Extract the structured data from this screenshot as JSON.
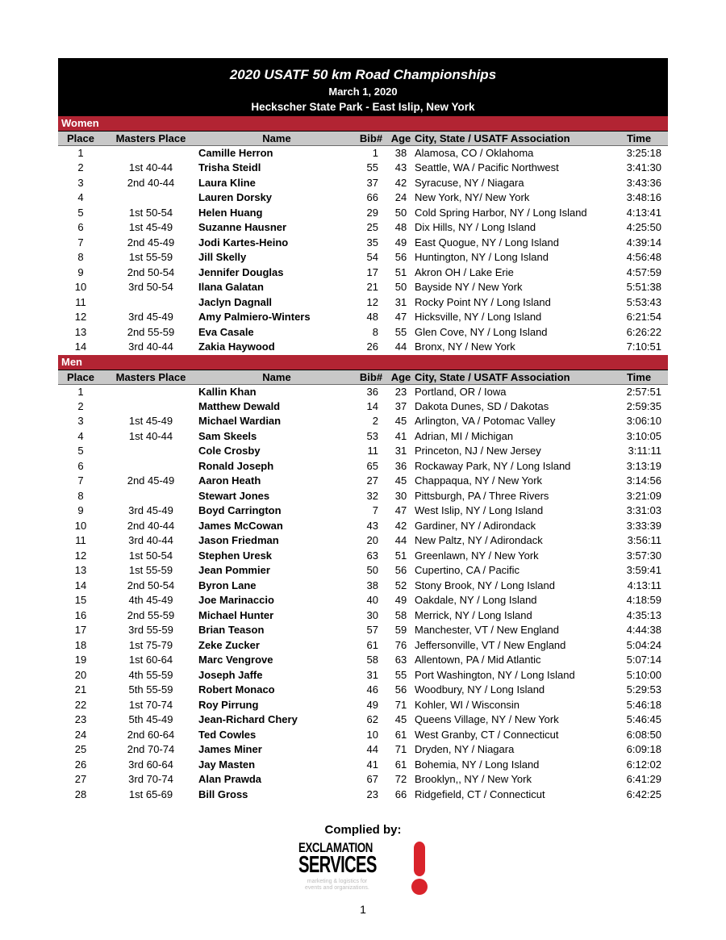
{
  "header": {
    "title": "2020 USATF 50 km Road Championships",
    "date": "March 1, 2020",
    "location": "Heckscher State Park - East Islip, New York"
  },
  "columns": [
    "Place",
    "Masters Place",
    "Name",
    "Bib#",
    "Age",
    "City, State / USATF Association",
    "Time"
  ],
  "sections": [
    {
      "label": "Women",
      "rows": [
        [
          "1",
          "",
          "Camille Herron",
          "1",
          "38",
          "Alamosa, CO / Oklahoma",
          "3:25:18"
        ],
        [
          "2",
          "1st 40-44",
          "Trisha Steidl",
          "55",
          "43",
          "Seattle, WA / Pacific Northwest",
          "3:41:30"
        ],
        [
          "3",
          "2nd 40-44",
          "Laura Kline",
          "37",
          "42",
          "Syracuse, NY / Niagara",
          "3:43:36"
        ],
        [
          "4",
          "",
          "Lauren Dorsky",
          "66",
          "24",
          "New York, NY/ New York",
          "3:48:16"
        ],
        [
          "5",
          "1st 50-54",
          "Helen Huang",
          "29",
          "50",
          "Cold Spring Harbor, NY / Long Island",
          "4:13:41"
        ],
        [
          "6",
          "1st 45-49",
          "Suzanne Hausner",
          "25",
          "48",
          "Dix Hills, NY / Long Island",
          "4:25:50"
        ],
        [
          "7",
          "2nd 45-49",
          "Jodi Kartes-Heino",
          "35",
          "49",
          "East Quogue, NY / Long Island",
          "4:39:14"
        ],
        [
          "8",
          "1st 55-59",
          "Jill Skelly",
          "54",
          "56",
          "Huntington, NY  / Long Island",
          "4:56:48"
        ],
        [
          "9",
          "2nd 50-54",
          "Jennifer Douglas",
          "17",
          "51",
          "Akron OH / Lake Erie",
          "4:57:59"
        ],
        [
          "10",
          "3rd 50-54",
          "Ilana Galatan",
          "21",
          "50",
          "Bayside NY / New York",
          "5:51:38"
        ],
        [
          "11",
          "",
          "Jaclyn Dagnall",
          "12",
          "31",
          "Rocky Point NY / Long Island",
          "5:53:43"
        ],
        [
          "12",
          "3rd 45-49",
          "Amy Palmiero-Winters",
          "48",
          "47",
          "Hicksville, NY / Long Island",
          "6:21:54"
        ],
        [
          "13",
          "2nd 55-59",
          "Eva Casale",
          "8",
          "55",
          "Glen Cove, NY / Long Island",
          "6:26:22"
        ],
        [
          "14",
          "3rd 40-44",
          "Zakia Haywood",
          "26",
          "44",
          "Bronx, NY / New York",
          "7:10:51"
        ]
      ]
    },
    {
      "label": "Men",
      "rows": [
        [
          "1",
          "",
          "Kallin Khan",
          "36",
          "23",
          "Portland, OR / Iowa",
          "2:57:51"
        ],
        [
          "2",
          "",
          "Matthew Dewald",
          "14",
          "37",
          "Dakota Dunes, SD / Dakotas",
          "2:59:35"
        ],
        [
          "3",
          "1st 45-49",
          "Michael Wardian",
          "2",
          "45",
          "Arlington, VA / Potomac Valley",
          "3:06:10"
        ],
        [
          "4",
          "1st 40-44",
          "Sam Skeels",
          "53",
          "41",
          "Adrian, MI / Michigan",
          "3:10:05"
        ],
        [
          "5",
          "",
          "Cole Crosby",
          "11",
          "31",
          "Princeton, NJ / New Jersey",
          "3:11:11"
        ],
        [
          "6",
          "",
          "Ronald Joseph",
          "65",
          "36",
          "Rockaway Park, NY / Long Island",
          "3:13:19"
        ],
        [
          "7",
          "2nd 45-49",
          "Aaron Heath",
          "27",
          "45",
          "Chappaqua, NY / New York",
          "3:14:56"
        ],
        [
          "8",
          "",
          "Stewart Jones",
          "32",
          "30",
          "Pittsburgh, PA / Three Rivers",
          "3:21:09"
        ],
        [
          "9",
          "3rd 45-49",
          "Boyd Carrington",
          "7",
          "47",
          "West Islip, NY / Long Island",
          "3:31:03"
        ],
        [
          "10",
          "2nd 40-44",
          "James McCowan",
          "43",
          "42",
          "Gardiner, NY / Adirondack",
          "3:33:39"
        ],
        [
          "11",
          "3rd 40-44",
          "Jason Friedman",
          "20",
          "44",
          "New Paltz, NY / Adirondack",
          "3:56:11"
        ],
        [
          "12",
          "1st 50-54",
          "Stephen Uresk",
          "63",
          "51",
          "Greenlawn, NY / New York",
          "3:57:30"
        ],
        [
          "13",
          "1st 55-59",
          "Jean Pommier",
          "50",
          "56",
          "Cupertino, CA / Pacific",
          "3:59:41"
        ],
        [
          "14",
          "2nd 50-54",
          "Byron Lane",
          "38",
          "52",
          "Stony Brook, NY / Long Island",
          "4:13:11"
        ],
        [
          "15",
          "4th 45-49",
          "Joe Marinaccio",
          "40",
          "49",
          "Oakdale, NY / Long Island",
          "4:18:59"
        ],
        [
          "16",
          "2nd 55-59",
          "Michael Hunter",
          "30",
          "58",
          "Merrick, NY / Long Island",
          "4:35:13"
        ],
        [
          "17",
          "3rd 55-59",
          "Brian Teason",
          "57",
          "59",
          "Manchester, VT / New England",
          "4:44:38"
        ],
        [
          "18",
          "1st 75-79",
          "Zeke Zucker",
          "61",
          "76",
          "Jeffersonville, VT / New England",
          "5:04:24"
        ],
        [
          "19",
          "1st 60-64",
          "Marc Vengrove",
          "58",
          "63",
          "Allentown, PA / Mid Atlantic",
          "5:07:14"
        ],
        [
          "20",
          "4th 55-59",
          "Joseph Jaffe",
          "31",
          "55",
          "Port Washington, NY / Long Island",
          "5:10:00"
        ],
        [
          "21",
          "5th 55-59",
          "Robert Monaco",
          "46",
          "56",
          "Woodbury, NY / Long Island",
          "5:29:53"
        ],
        [
          "22",
          "1st 70-74",
          "Roy Pirrung",
          "49",
          "71",
          "Kohler, WI / Wisconsin",
          "5:46:18"
        ],
        [
          "23",
          "5th 45-49",
          "Jean-Richard Chery",
          "62",
          "45",
          "Queens Village, NY / New York",
          "5:46:45"
        ],
        [
          "24",
          "2nd 60-64",
          "Ted Cowles",
          "10",
          "61",
          "West Granby, CT / Connecticut",
          "6:08:50"
        ],
        [
          "25",
          "2nd 70-74",
          "James Miner",
          "44",
          "71",
          "Dryden, NY / Niagara",
          "6:09:18"
        ],
        [
          "26",
          "3rd 60-64",
          "Jay Masten",
          "41",
          "61",
          "Bohemia, NY / Long Island",
          "6:12:02"
        ],
        [
          "27",
          "3rd 70-74",
          "Alan Prawda",
          "67",
          "72",
          "Brooklyn,, NY / New York",
          "6:41:29"
        ],
        [
          "28",
          "1st 65-69",
          "Bill Gross",
          "23",
          "66",
          "Ridgefield, CT / Connecticut",
          "6:42:25"
        ]
      ]
    }
  ],
  "footer": {
    "complied_by": "Complied by:",
    "logo_line1": "EXCLAMATION",
    "logo_line2": "SERVICES",
    "logo_tagline1": "marketing & logistics for",
    "logo_tagline2": "events and organizations.",
    "page_number": "1"
  },
  "colors": {
    "title_bg": "#000000",
    "section_bar_red": "#B22433",
    "header_row_gray": "#C8C8C8",
    "logo_red": "#D9232B"
  }
}
